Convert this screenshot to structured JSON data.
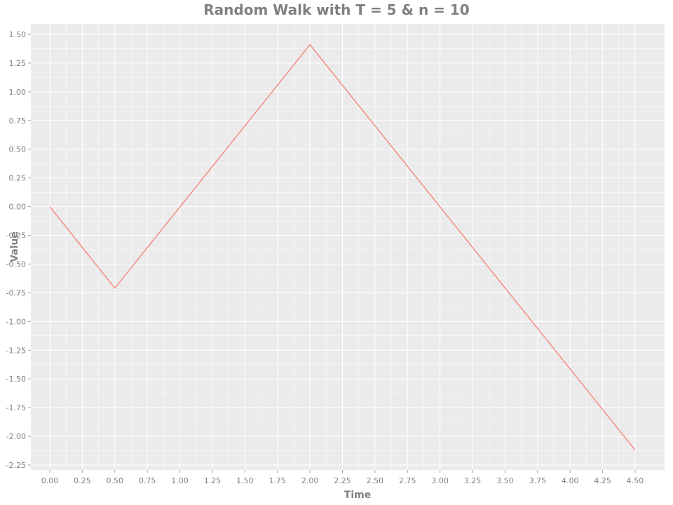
{
  "chart_data": {
    "type": "line",
    "title": "Random Walk with T = 5 & n = 10",
    "xlabel": "Time",
    "ylabel": "Value",
    "xlim": [
      0.0,
      4.5
    ],
    "ylim": [
      -2.25,
      1.5
    ],
    "grid": true,
    "x_ticks": [
      "0.00",
      "0.25",
      "0.50",
      "0.75",
      "1.00",
      "1.25",
      "1.50",
      "1.75",
      "2.00",
      "2.25",
      "2.50",
      "2.75",
      "3.00",
      "3.25",
      "3.50",
      "3.75",
      "4.00",
      "4.25",
      "4.50"
    ],
    "y_ticks": [
      "1.50",
      "1.25",
      "1.00",
      "0.75",
      "0.50",
      "0.25",
      "0.00",
      "-0.25",
      "-0.50",
      "-0.75",
      "-1.00",
      "-1.25",
      "-1.50",
      "-1.75",
      "-2.00",
      "-2.25"
    ],
    "series": [
      {
        "x": [
          0.0,
          0.5,
          2.0,
          4.5
        ],
        "y": [
          0.0,
          -0.71,
          1.41,
          -2.12
        ]
      }
    ],
    "colors": {
      "line": "#f8766d",
      "panel": "#ebebeb",
      "grid": "#ffffff",
      "text": "#808080"
    }
  }
}
